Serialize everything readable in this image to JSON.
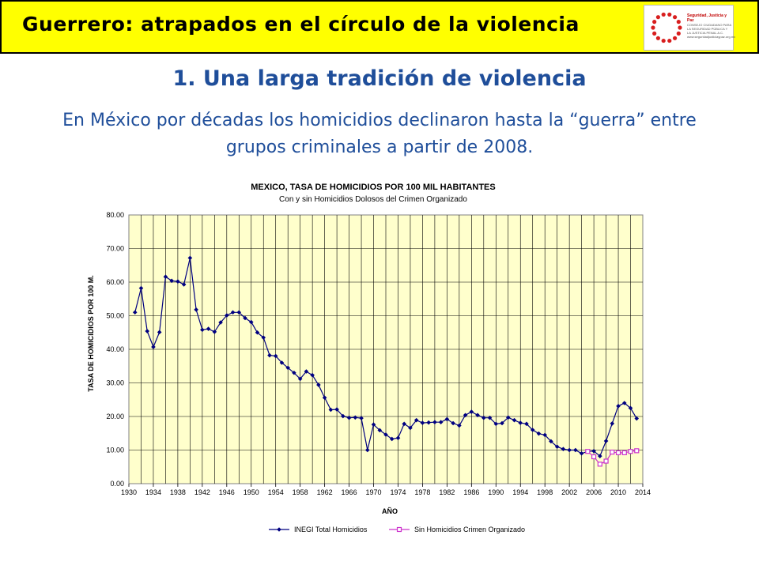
{
  "header": {
    "title": "Guerrero: atrapados en el círculo de la violencia",
    "logo": {
      "name": "Seguridad, Justicia y Paz",
      "tagline": "CONSEJO CIUDADANO PARA LA SEGURIDAD PÚBLICA Y LA JUSTICIA PENAL A.C.",
      "url": "www.seguridadjusticiaypaz.org.mx"
    }
  },
  "slide": {
    "title": "1. Una larga tradición de violencia",
    "subtitle": "En México por décadas los homicidios declinaron hasta la “guerra” entre grupos criminales a partir de 2008."
  },
  "colors": {
    "header_bg": "#ffff00",
    "title_blue": "#1f4e9a",
    "plot_bg": "#ffffcc",
    "series_total": "#000080",
    "series_sin": "#cc33cc"
  },
  "chart_data": {
    "type": "line",
    "title": "MEXICO, TASA DE HOMICIDIOS POR 100 MIL HABITANTES",
    "subtitle": "Con y sin Homicidios Dolosos del Crimen Organizado",
    "xlabel": "AÑO",
    "ylabel": "TASA DE HOMICIDIOS POR 100 M.",
    "xlim": [
      1930,
      2014
    ],
    "ylim": [
      0,
      80
    ],
    "x_ticks": [
      "1930",
      "1934",
      "1938",
      "1942",
      "1946",
      "1950",
      "1954",
      "1958",
      "1962",
      "1966",
      "1970",
      "1974",
      "1978",
      "1982",
      "1986",
      "1990",
      "1994",
      "1998",
      "2002",
      "2006",
      "2010",
      "2014"
    ],
    "y_ticks": [
      "0.00",
      "10.00",
      "20.00",
      "30.00",
      "40.00",
      "50.00",
      "60.00",
      "70.00",
      "80.00"
    ],
    "grid": true,
    "legend_position": "bottom",
    "series": [
      {
        "name": "INEGI Total Homicidios",
        "marker": "diamond",
        "x": [
          1931,
          1932,
          1933,
          1934,
          1935,
          1936,
          1937,
          1938,
          1939,
          1940,
          1941,
          1942,
          1943,
          1944,
          1945,
          1946,
          1947,
          1948,
          1949,
          1950,
          1951,
          1952,
          1953,
          1954,
          1955,
          1956,
          1957,
          1958,
          1959,
          1960,
          1961,
          1962,
          1963,
          1964,
          1965,
          1966,
          1967,
          1968,
          1969,
          1970,
          1971,
          1972,
          1973,
          1974,
          1975,
          1976,
          1977,
          1978,
          1979,
          1980,
          1981,
          1982,
          1983,
          1984,
          1985,
          1986,
          1987,
          1988,
          1989,
          1990,
          1991,
          1992,
          1993,
          1994,
          1995,
          1996,
          1997,
          1998,
          1999,
          2000,
          2001,
          2002,
          2003,
          2004,
          2005,
          2006,
          2007,
          2008,
          2009,
          2010,
          2011,
          2012,
          2013
        ],
        "values": [
          51.0,
          58.2,
          45.4,
          40.7,
          45.1,
          61.6,
          60.4,
          60.2,
          59.3,
          67.2,
          51.8,
          45.8,
          46.1,
          45.2,
          48.0,
          50.1,
          51.0,
          51.0,
          49.3,
          48.1,
          45.0,
          43.5,
          38.2,
          38.0,
          36.0,
          34.5,
          33.0,
          31.2,
          33.4,
          32.3,
          29.4,
          25.6,
          22.0,
          22.1,
          20.1,
          19.6,
          19.7,
          19.5,
          10.0,
          17.6,
          15.9,
          14.6,
          13.3,
          13.6,
          17.8,
          16.6,
          18.9,
          18.1,
          18.2,
          18.3,
          18.3,
          19.2,
          18.0,
          17.3,
          20.4,
          21.4,
          20.4,
          19.6,
          19.6,
          17.8,
          18.0,
          19.7,
          18.9,
          18.1,
          17.8,
          16.0,
          14.9,
          14.5,
          12.6,
          11.0,
          10.3,
          10.0,
          10.0,
          9.0,
          9.6,
          9.7,
          8.2,
          12.7,
          17.9,
          23.1,
          24.0,
          22.5,
          19.4
        ]
      },
      {
        "name": "Sin Homicidios Crimen Organizado",
        "marker": "square",
        "x": [
          2005,
          2006,
          2007,
          2008,
          2009,
          2010,
          2011,
          2012,
          2013
        ],
        "values": [
          9.6,
          8.0,
          5.8,
          6.7,
          9.4,
          9.2,
          9.2,
          9.6,
          9.8
        ]
      }
    ]
  }
}
